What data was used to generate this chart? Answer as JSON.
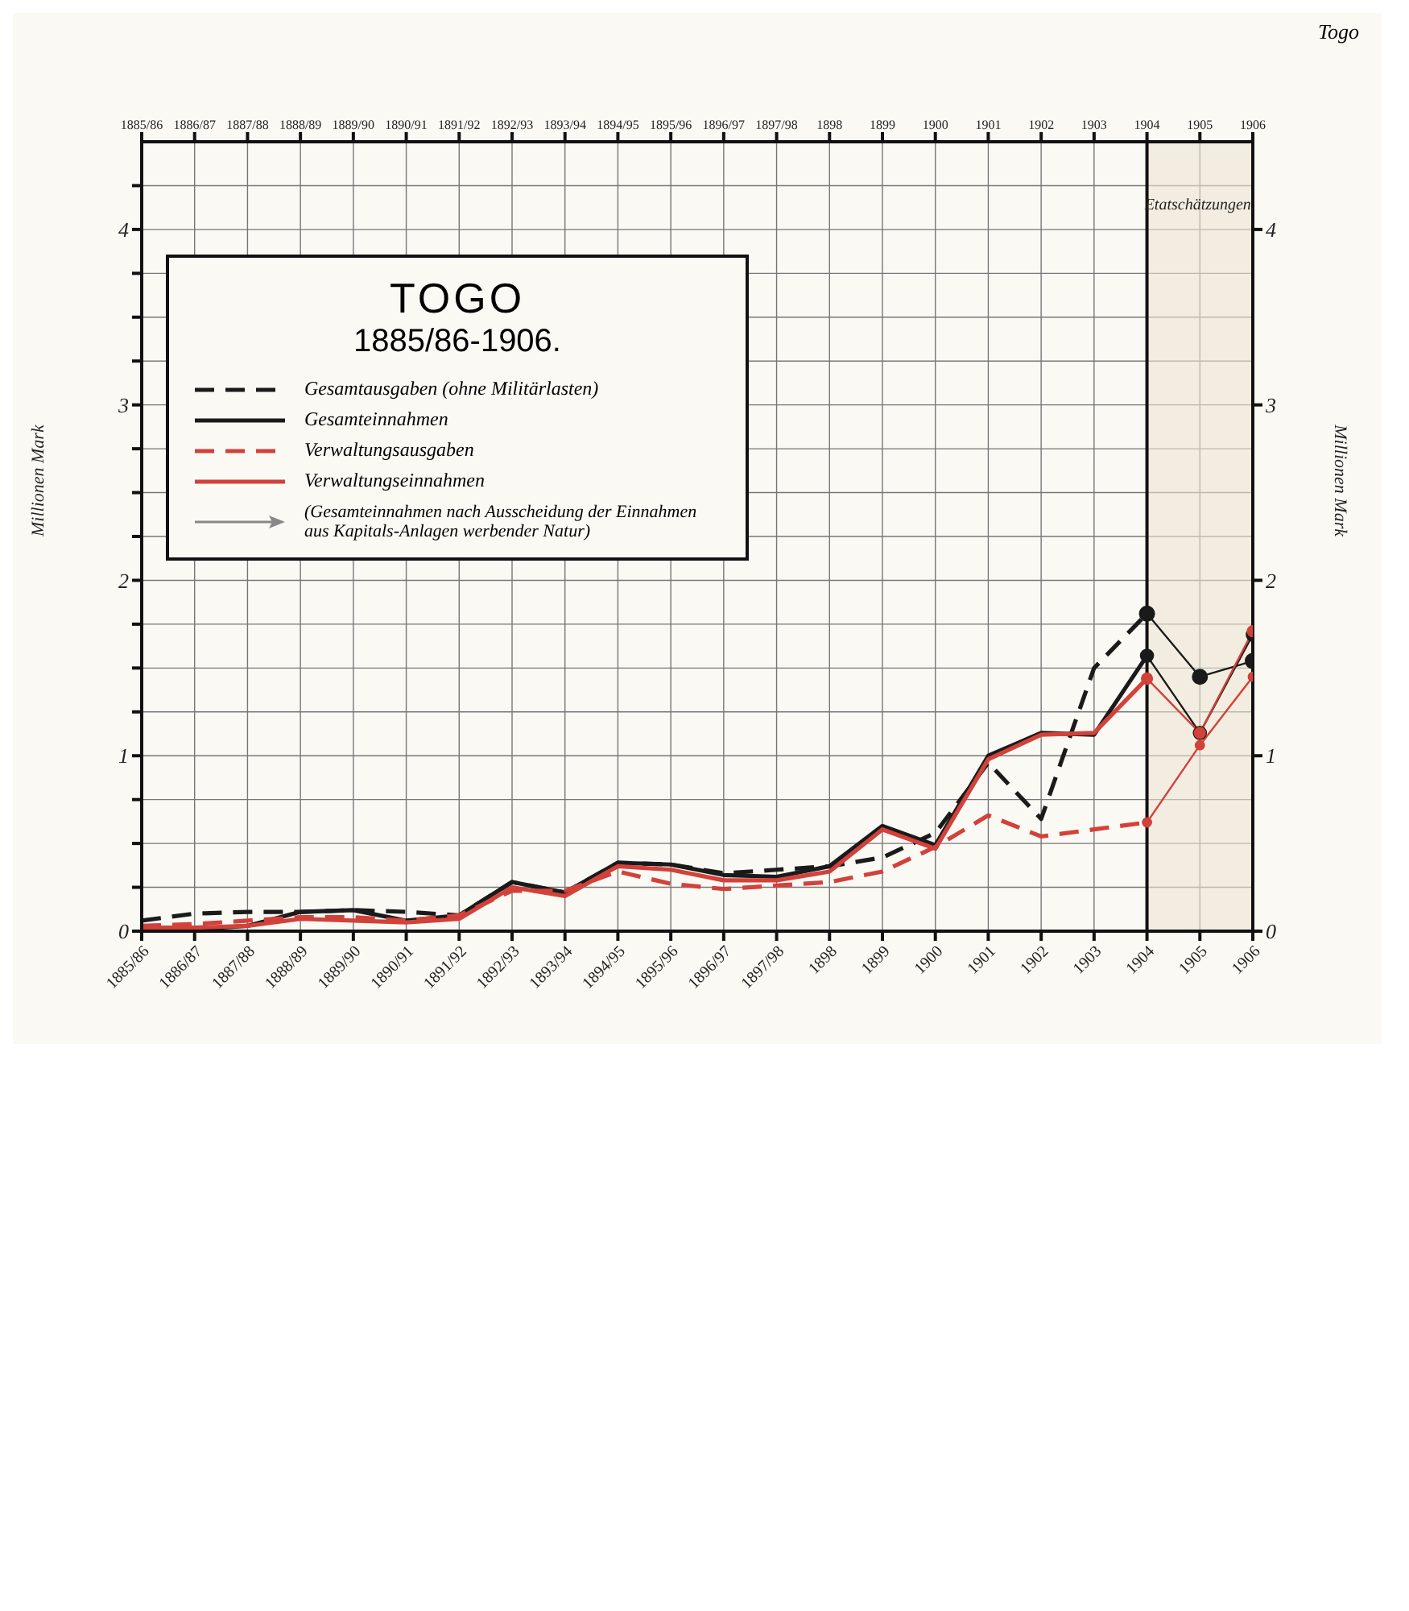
{
  "chart_data": {
    "type": "line",
    "title": "TOGO",
    "subtitle": "1885/86-1906.",
    "ylabel": "Millionen Mark",
    "y2label": "Millionen Mark",
    "categories": [
      "1885/86",
      "1886/87",
      "1887/88",
      "1888/89",
      "1889/90",
      "1890/91",
      "1891/92",
      "1892/93",
      "1893/94",
      "1894/95",
      "1895/96",
      "1896/97",
      "1897/98",
      "1898",
      "1899",
      "1900",
      "1901",
      "1902",
      "1903",
      "1904",
      "1905",
      "1906"
    ],
    "series": [
      {
        "name": "Gesamtausgaben (ohne Militärlasten)",
        "color": "#1a1a1a",
        "line_style": "dashed",
        "marker": "none",
        "values": [
          0.06,
          0.1,
          0.11,
          0.11,
          0.12,
          0.11,
          0.09,
          0.28,
          0.22,
          0.39,
          0.38,
          0.33,
          0.35,
          0.37,
          0.42,
          0.56,
          0.96,
          0.64,
          1.5,
          1.81,
          null,
          null
        ]
      },
      {
        "name": "Gesamteinnahmen",
        "color": "#1a1a1a",
        "line_style": "solid",
        "marker": "none",
        "values": [
          null,
          0.01,
          0.03,
          0.11,
          0.12,
          0.06,
          0.09,
          0.28,
          0.22,
          0.39,
          0.38,
          0.32,
          0.31,
          0.37,
          0.6,
          0.49,
          1.0,
          1.13,
          1.12,
          1.57,
          null,
          null
        ]
      },
      {
        "name": "Verwaltungsausgaben",
        "color": "#d2413a",
        "line_style": "dashed",
        "marker": "none",
        "values": [
          0.03,
          0.04,
          0.06,
          0.08,
          0.08,
          0.06,
          0.09,
          0.23,
          0.23,
          0.34,
          0.27,
          0.24,
          0.26,
          0.28,
          0.34,
          0.48,
          0.66,
          0.54,
          0.58,
          0.62,
          null,
          null
        ]
      },
      {
        "name": "Verwaltungseinnahmen",
        "color": "#d2413a",
        "line_style": "solid",
        "marker": "none",
        "values": [
          0.02,
          0.02,
          0.03,
          0.07,
          0.06,
          0.05,
          0.07,
          0.25,
          0.2,
          0.37,
          0.35,
          0.29,
          0.29,
          0.34,
          0.58,
          0.47,
          0.98,
          1.12,
          1.13,
          1.44,
          null,
          null
        ]
      },
      {
        "color": "#1a1a1a",
        "line_style": "solid",
        "marker": "circle",
        "values": [
          null,
          null,
          null,
          null,
          null,
          null,
          null,
          null,
          null,
          null,
          null,
          null,
          null,
          null,
          null,
          null,
          null,
          null,
          null,
          1.81,
          1.45,
          1.54
        ]
      },
      {
        "color": "#1a1a1a",
        "line_style": "solid",
        "marker": "circle",
        "values": [
          null,
          null,
          null,
          null,
          null,
          null,
          null,
          null,
          null,
          null,
          null,
          null,
          null,
          null,
          null,
          null,
          null,
          null,
          null,
          1.57,
          1.13,
          1.69
        ]
      },
      {
        "color": "#d2413a",
        "line_style": "solid",
        "marker": "circle",
        "values": [
          null,
          null,
          null,
          null,
          null,
          null,
          null,
          null,
          null,
          null,
          null,
          null,
          null,
          null,
          null,
          null,
          null,
          null,
          null,
          1.44,
          1.13,
          1.71
        ]
      },
      {
        "color": "#d2413a",
        "line_style": "solid",
        "marker": "circle",
        "values": [
          null,
          null,
          null,
          null,
          null,
          null,
          null,
          null,
          null,
          null,
          null,
          null,
          null,
          null,
          null,
          null,
          null,
          null,
          null,
          0.62,
          1.06,
          1.45
        ]
      }
    ],
    "ylim": [
      0,
      4.5
    ],
    "yticks": [
      0,
      {
        "value": 0.25,
        "label": null
      },
      {
        "value": 0.5,
        "label": null
      },
      {
        "value": 0.75,
        "label": null
      },
      1,
      {
        "value": 1.25,
        "label": null
      },
      {
        "value": 1.5,
        "label": null
      },
      {
        "value": 1.75,
        "label": null
      },
      2,
      {
        "value": 2.25,
        "label": null
      },
      {
        "value": 2.5,
        "label": null
      },
      {
        "value": 2.75,
        "label": null
      },
      3,
      {
        "value": 3.25,
        "label": null
      },
      {
        "value": 3.5,
        "label": null
      },
      {
        "value": 3.75,
        "label": null
      },
      4,
      {
        "value": 4.25,
        "label": null
      }
    ],
    "y2lim": [
      0,
      4.5
    ],
    "y2ticks": [
      0,
      1,
      2,
      3,
      4
    ],
    "bands": [
      {
        "axis": "x",
        "from": "1904",
        "to": "1906",
        "label": "Etatschätzungen."
      }
    ],
    "annotations": [
      "Togo",
      "(Gesamteinnahmen nach Ausscheidung der Einnahmen aus Kapitals-Anlagen werbender Natur)"
    ],
    "grid": true,
    "legend": "top left"
  }
}
